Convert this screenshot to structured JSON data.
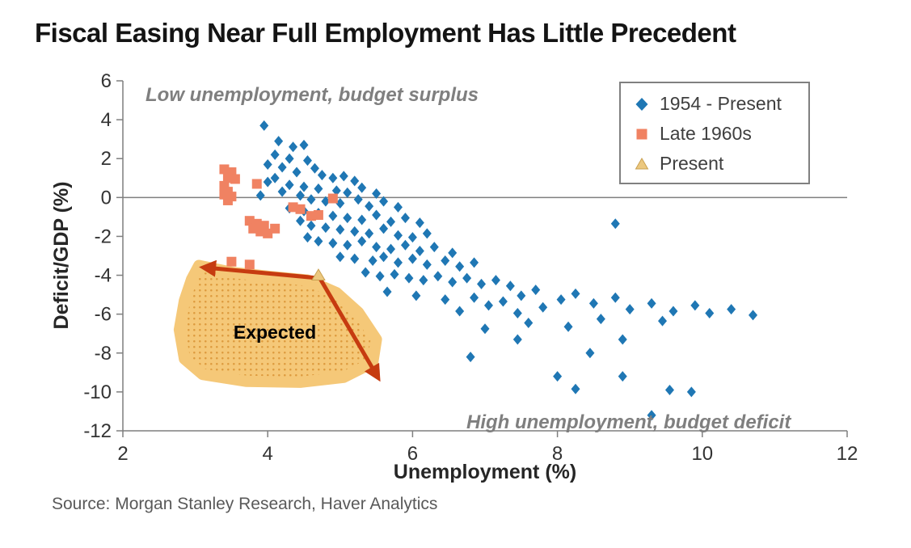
{
  "page": {
    "source": "Source: Morgan Stanley Research, Haver Analytics"
  },
  "chart_data": {
    "type": "scatter",
    "title": "Fiscal Easing Near Full Employment Has Little Precedent",
    "xlabel": "Unemployment (%)",
    "ylabel": "Deficit/GDP (%)",
    "xlim": [
      2,
      12
    ],
    "ylim": [
      -12,
      6
    ],
    "xticks": [
      2,
      4,
      6,
      8,
      10,
      12
    ],
    "yticks": [
      6,
      4,
      2,
      0,
      -2,
      -4,
      -6,
      -8,
      -10,
      -12
    ],
    "zero_line": 0,
    "grid": false,
    "legend_position": "top-right",
    "series": [
      {
        "name": "1954 - Present",
        "marker": "diamond",
        "color": "#1f77b4",
        "points": [
          [
            3.95,
            3.7
          ],
          [
            4.15,
            2.9
          ],
          [
            4.35,
            2.6
          ],
          [
            4.5,
            2.7
          ],
          [
            4.1,
            2.2
          ],
          [
            4.3,
            2.0
          ],
          [
            4.55,
            1.9
          ],
          [
            4.0,
            1.7
          ],
          [
            4.2,
            1.55
          ],
          [
            4.65,
            1.5
          ],
          [
            4.4,
            1.3
          ],
          [
            4.75,
            1.15
          ],
          [
            4.9,
            1.0
          ],
          [
            5.05,
            1.1
          ],
          [
            5.2,
            0.85
          ],
          [
            4.1,
            1.0
          ],
          [
            4.0,
            0.8
          ],
          [
            4.3,
            0.65
          ],
          [
            4.5,
            0.55
          ],
          [
            4.7,
            0.45
          ],
          [
            4.95,
            0.35
          ],
          [
            5.1,
            0.25
          ],
          [
            5.3,
            0.5
          ],
          [
            5.5,
            0.2
          ],
          [
            4.2,
            0.3
          ],
          [
            4.45,
            0.1
          ],
          [
            3.9,
            0.1
          ],
          [
            4.6,
            -0.1
          ],
          [
            4.8,
            -0.2
          ],
          [
            5.0,
            -0.3
          ],
          [
            5.25,
            -0.1
          ],
          [
            5.4,
            -0.45
          ],
          [
            5.6,
            -0.2
          ],
          [
            5.8,
            -0.5
          ],
          [
            4.3,
            -0.55
          ],
          [
            4.5,
            -0.7
          ],
          [
            4.7,
            -0.8
          ],
          [
            4.9,
            -0.95
          ],
          [
            5.1,
            -1.05
          ],
          [
            5.3,
            -1.15
          ],
          [
            5.5,
            -0.9
          ],
          [
            5.7,
            -1.25
          ],
          [
            5.9,
            -1.05
          ],
          [
            6.1,
            -1.3
          ],
          [
            4.45,
            -1.2
          ],
          [
            4.6,
            -1.45
          ],
          [
            4.8,
            -1.55
          ],
          [
            5.0,
            -1.65
          ],
          [
            5.2,
            -1.75
          ],
          [
            5.4,
            -1.85
          ],
          [
            5.6,
            -1.6
          ],
          [
            5.8,
            -1.95
          ],
          [
            6.0,
            -2.05
          ],
          [
            6.2,
            -1.85
          ],
          [
            4.55,
            -2.05
          ],
          [
            4.7,
            -2.25
          ],
          [
            4.9,
            -2.35
          ],
          [
            5.1,
            -2.45
          ],
          [
            5.3,
            -2.25
          ],
          [
            5.5,
            -2.55
          ],
          [
            5.7,
            -2.65
          ],
          [
            5.9,
            -2.45
          ],
          [
            6.1,
            -2.75
          ],
          [
            6.3,
            -2.55
          ],
          [
            6.55,
            -2.85
          ],
          [
            5.0,
            -3.05
          ],
          [
            5.2,
            -3.15
          ],
          [
            5.45,
            -3.25
          ],
          [
            5.6,
            -3.05
          ],
          [
            5.8,
            -3.35
          ],
          [
            6.0,
            -3.15
          ],
          [
            6.2,
            -3.45
          ],
          [
            6.45,
            -3.25
          ],
          [
            6.65,
            -3.55
          ],
          [
            6.85,
            -3.35
          ],
          [
            5.35,
            -3.85
          ],
          [
            5.55,
            -4.05
          ],
          [
            5.75,
            -3.95
          ],
          [
            5.95,
            -4.15
          ],
          [
            6.15,
            -4.25
          ],
          [
            6.35,
            -4.05
          ],
          [
            6.55,
            -4.35
          ],
          [
            6.75,
            -4.15
          ],
          [
            6.95,
            -4.45
          ],
          [
            7.15,
            -4.25
          ],
          [
            7.35,
            -4.55
          ],
          [
            5.65,
            -4.85
          ],
          [
            6.05,
            -5.05
          ],
          [
            6.45,
            -5.25
          ],
          [
            6.85,
            -5.15
          ],
          [
            7.25,
            -5.35
          ],
          [
            7.5,
            -5.05
          ],
          [
            7.7,
            -4.75
          ],
          [
            7.05,
            -5.55
          ],
          [
            6.65,
            -5.85
          ],
          [
            7.45,
            -5.95
          ],
          [
            7.8,
            -5.65
          ],
          [
            8.05,
            -5.25
          ],
          [
            8.25,
            -4.95
          ],
          [
            8.5,
            -5.45
          ],
          [
            8.8,
            -5.15
          ],
          [
            9.0,
            -5.75
          ],
          [
            9.3,
            -5.45
          ],
          [
            9.6,
            -5.85
          ],
          [
            9.9,
            -5.55
          ],
          [
            10.1,
            -5.95
          ],
          [
            10.4,
            -5.75
          ],
          [
            10.7,
            -6.05
          ],
          [
            9.45,
            -6.35
          ],
          [
            8.6,
            -6.25
          ],
          [
            8.15,
            -6.65
          ],
          [
            7.6,
            -6.45
          ],
          [
            7.0,
            -6.75
          ],
          [
            8.9,
            -7.3
          ],
          [
            8.8,
            -1.35
          ],
          [
            6.8,
            -8.2
          ],
          [
            8.0,
            -9.2
          ],
          [
            8.25,
            -9.85
          ],
          [
            8.9,
            -9.2
          ],
          [
            9.3,
            -11.2
          ],
          [
            9.85,
            -10.0
          ],
          [
            9.55,
            -9.9
          ],
          [
            7.45,
            -7.3
          ],
          [
            8.45,
            -8.0
          ]
        ]
      },
      {
        "name": "Late 1960s",
        "marker": "square",
        "color": "#f08262",
        "points": [
          [
            3.4,
            1.45
          ],
          [
            3.5,
            1.3
          ],
          [
            3.45,
            1.0
          ],
          [
            3.55,
            0.95
          ],
          [
            3.4,
            0.6
          ],
          [
            3.45,
            0.3
          ],
          [
            3.4,
            0.15
          ],
          [
            3.5,
            0.05
          ],
          [
            3.45,
            -0.15
          ],
          [
            3.85,
            0.7
          ],
          [
            3.75,
            -1.2
          ],
          [
            3.85,
            -1.35
          ],
          [
            3.95,
            -1.45
          ],
          [
            3.8,
            -1.6
          ],
          [
            3.9,
            -1.75
          ],
          [
            4.0,
            -1.85
          ],
          [
            4.1,
            -1.6
          ],
          [
            4.35,
            -0.5
          ],
          [
            4.45,
            -0.6
          ],
          [
            4.6,
            -0.95
          ],
          [
            4.7,
            -0.9
          ],
          [
            4.9,
            -0.05
          ],
          [
            3.5,
            -3.3
          ],
          [
            3.75,
            -3.45
          ]
        ]
      },
      {
        "name": "Present",
        "marker": "triangle",
        "color": "#ecc87f",
        "points": [
          [
            4.7,
            -4.0
          ]
        ]
      }
    ],
    "annotations": [
      {
        "id": "low-unemployment-note",
        "text": "Low unemployment, budget surplus"
      },
      {
        "id": "high-unemployment-note",
        "text": "High unemployment, budget deficit"
      },
      {
        "id": "expected-note",
        "text": "Expected"
      }
    ],
    "expected_region": {
      "fill": "#f5c878",
      "dot_color": "#dd9a3d",
      "outline": [
        [
          3.05,
          -3.5
        ],
        [
          3.5,
          -3.85
        ],
        [
          4.0,
          -4.05
        ],
        [
          4.55,
          -4.25
        ],
        [
          4.95,
          -4.9
        ],
        [
          5.25,
          -5.9
        ],
        [
          5.5,
          -7.3
        ],
        [
          5.45,
          -8.5
        ],
        [
          5.05,
          -9.25
        ],
        [
          4.45,
          -9.5
        ],
        [
          3.7,
          -9.45
        ],
        [
          3.1,
          -9.1
        ],
        [
          2.85,
          -8.3
        ],
        [
          2.78,
          -6.8
        ],
        [
          2.85,
          -5.3
        ],
        [
          2.95,
          -4.2
        ]
      ],
      "arrow": {
        "color": "#c63b10",
        "points": [
          [
            3.12,
            -3.6
          ],
          [
            4.72,
            -4.15
          ],
          [
            5.52,
            -9.25
          ]
        ]
      }
    }
  }
}
